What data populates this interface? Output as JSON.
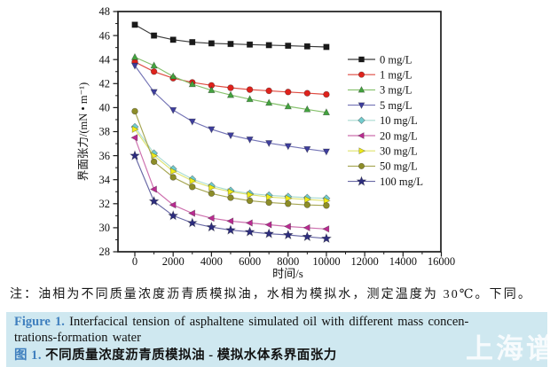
{
  "note": "注：油相为不同质量浓度沥青质模拟油，水相为模拟水，测定温度为 30℃。下同。",
  "caption": {
    "background_color": "#cfe8f0",
    "accent_color": "#3f7fbe",
    "figure_label_en": "Figure 1.",
    "en_line1": " Interfacical tension of asphaltene simulated oil with different mass concen-",
    "en_line2": "trations-formation water",
    "figure_label_zh": "图 1.",
    "zh_text": " 不同质量浓度沥青质模拟油 - 模拟水体系界面张力",
    "watermark": "上海谱"
  },
  "chart_data": {
    "type": "line",
    "title": "",
    "xlabel": "时间/s",
    "ylabel": "界面张力/(mN • m⁻¹)",
    "xlim": [
      -880,
      16000
    ],
    "ylim": [
      28,
      48
    ],
    "x_ticks": [
      0,
      2000,
      4000,
      6000,
      8000,
      10000,
      12000,
      14000,
      16000
    ],
    "x_minor_ticks": [
      1000,
      3000,
      5000,
      7000,
      9000,
      11000,
      13000,
      15000
    ],
    "y_ticks": [
      28,
      30,
      32,
      34,
      36,
      38,
      40,
      42,
      44,
      46,
      48
    ],
    "y_minor_ticks": [
      29,
      31,
      33,
      35,
      37,
      39,
      41,
      43,
      45,
      47
    ],
    "grid": false,
    "legend_position": "inside-right",
    "x": [
      0,
      1000,
      2000,
      3000,
      4000,
      5000,
      6000,
      7000,
      8000,
      9000,
      10000
    ],
    "series": [
      {
        "name": "0 mg/L",
        "marker": "square",
        "color": "#1a1a1a",
        "line_color": "#3a3a3a",
        "values": [
          46.9,
          46.0,
          45.65,
          45.45,
          45.35,
          45.3,
          45.25,
          45.2,
          45.15,
          45.1,
          45.05
        ]
      },
      {
        "name": "1 mg/L",
        "marker": "circle",
        "color": "#df221c",
        "line_color": "#df4a40",
        "values": [
          43.8,
          43.0,
          42.45,
          42.1,
          41.85,
          41.65,
          41.5,
          41.4,
          41.3,
          41.2,
          41.1
        ]
      },
      {
        "name": "3 mg/L",
        "marker": "triangle-up",
        "color": "#43a33f",
        "line_color": "#84c06a",
        "values": [
          44.2,
          43.5,
          42.6,
          41.95,
          41.45,
          41.05,
          40.7,
          40.4,
          40.1,
          39.85,
          39.6
        ]
      },
      {
        "name": "5 mg/L",
        "marker": "triangle-down",
        "color": "#3e3e9d",
        "line_color": "#7373b5",
        "values": [
          43.5,
          41.3,
          39.8,
          38.85,
          38.2,
          37.7,
          37.35,
          37.05,
          36.8,
          36.55,
          36.35
        ]
      },
      {
        "name": "10 mg/L",
        "marker": "diamond",
        "color": "#72ccce",
        "line_color": "#aadcd2",
        "values": [
          38.4,
          36.2,
          34.9,
          34.05,
          33.5,
          33.1,
          32.85,
          32.7,
          32.6,
          32.5,
          32.45
        ]
      },
      {
        "name": "20 mg/L",
        "marker": "triangle-left",
        "color": "#ba2b91",
        "line_color": "#cd6fae",
        "values": [
          37.5,
          33.2,
          31.9,
          31.2,
          30.8,
          30.55,
          30.4,
          30.25,
          30.1,
          30.0,
          29.9
        ]
      },
      {
        "name": "30 mg/L",
        "marker": "triangle-right",
        "color": "#efeb19",
        "line_color": "#dfe36e",
        "values": [
          38.2,
          36.0,
          34.7,
          33.9,
          33.35,
          33.0,
          32.75,
          32.55,
          32.45,
          32.35,
          32.25
        ]
      },
      {
        "name": "50 mg/L",
        "marker": "circle",
        "color": "#8d8d28",
        "line_color": "#a6a652",
        "values": [
          39.7,
          35.5,
          34.2,
          33.4,
          32.85,
          32.5,
          32.25,
          32.1,
          32.0,
          31.9,
          31.85
        ]
      },
      {
        "name": "100 mg/L",
        "marker": "star",
        "color": "#2d2d7e",
        "line_color": "#6868a5",
        "values": [
          36.0,
          32.2,
          31.0,
          30.4,
          30.05,
          29.8,
          29.65,
          29.5,
          29.4,
          29.25,
          29.1
        ]
      }
    ]
  }
}
